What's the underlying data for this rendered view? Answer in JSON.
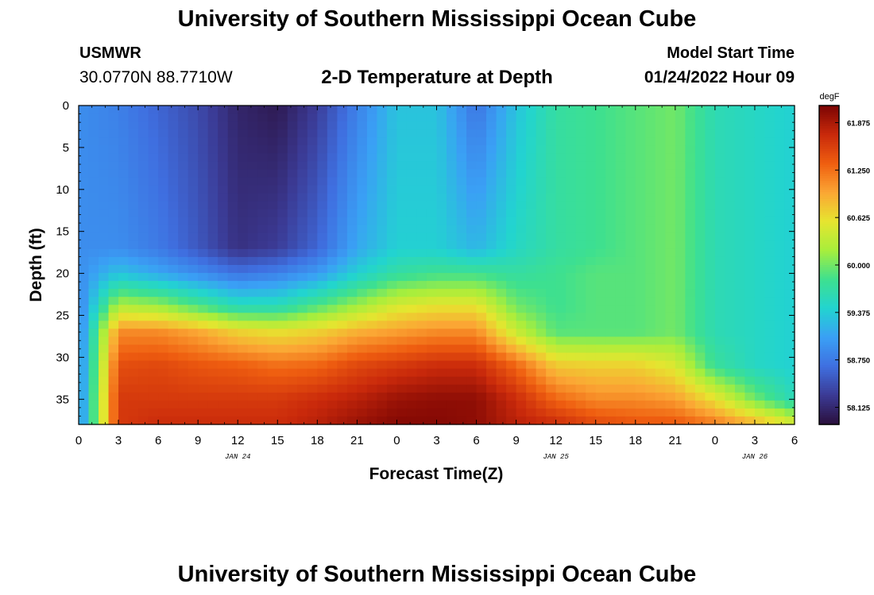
{
  "header": {
    "title": "University of Southern Mississippi Ocean Cube",
    "station": "USMWR",
    "coords": "30.0770N  88.7710W",
    "subtitle": "2-D Temperature at Depth",
    "start_label": "Model Start Time",
    "start_value": "01/24/2022 Hour 09"
  },
  "footer": {
    "title": "University of Southern Mississippi Ocean Cube"
  },
  "chart_data": {
    "type": "heatmap",
    "xlabel": "Forecast Time(Z)",
    "ylabel": "Depth (ft)",
    "x_tick_labels": [
      "0",
      "3",
      "6",
      "9",
      "12",
      "15",
      "18",
      "21",
      "0",
      "3",
      "6",
      "9",
      "12",
      "15",
      "18",
      "21",
      "0",
      "3",
      "6"
    ],
    "x_range_hours": [
      0,
      54
    ],
    "date_labels": [
      {
        "label": "JAN 24",
        "hour": 12
      },
      {
        "label": "JAN 25",
        "hour": 36
      },
      {
        "label": "JAN 26",
        "hour": 51
      }
    ],
    "y_ticks": [
      0,
      5,
      10,
      15,
      20,
      25,
      30,
      35
    ],
    "y_range": [
      0,
      38
    ],
    "y_inverted": true,
    "colorbar": {
      "unit": "degF",
      "min": 57.9,
      "max": 62.1,
      "tick_values": [
        58.125,
        58.75,
        59.375,
        60.0,
        60.625,
        61.25,
        61.875
      ],
      "tick_labels": [
        "58.125",
        "58.750",
        "59.375",
        "60.000",
        "60.625",
        "61.250",
        "61.875"
      ],
      "colors": [
        "#2a0f3c",
        "#3b3a94",
        "#3f6fe0",
        "#3aa0f5",
        "#22d4d0",
        "#3ee08f",
        "#a7ee3c",
        "#e6e52f",
        "#fba634",
        "#ef5e10",
        "#c9290b",
        "#7a0403"
      ]
    },
    "depth_samples": [
      0,
      17,
      20,
      24,
      27,
      31,
      35,
      38
    ],
    "time_samples_hours": [
      0,
      3,
      6,
      9,
      12,
      15,
      18,
      21,
      24,
      27,
      30,
      33,
      36,
      39,
      42,
      45,
      48,
      51,
      54
    ],
    "values_degF": [
      [
        58.9,
        58.9,
        58.9,
        58.8,
        58.8,
        58.8,
        58.8,
        58.8
      ],
      [
        58.8,
        58.9,
        59.3,
        60.3,
        61.1,
        61.45,
        61.6,
        61.6
      ],
      [
        58.6,
        58.75,
        59.1,
        60.2,
        61.1,
        61.5,
        61.6,
        61.7
      ],
      [
        58.4,
        58.5,
        58.9,
        59.9,
        60.95,
        61.4,
        61.6,
        61.7
      ],
      [
        58.1,
        58.2,
        58.7,
        59.6,
        60.7,
        61.35,
        61.6,
        61.7
      ],
      [
        58.0,
        58.3,
        58.8,
        59.6,
        60.6,
        61.25,
        61.6,
        61.7
      ],
      [
        58.3,
        58.6,
        59.0,
        59.9,
        60.7,
        61.3,
        61.7,
        61.8
      ],
      [
        58.8,
        59.1,
        59.4,
        60.2,
        60.9,
        61.5,
        61.8,
        61.95
      ],
      [
        59.3,
        59.4,
        59.7,
        60.5,
        61.0,
        61.6,
        61.95,
        62.05
      ],
      [
        59.3,
        59.4,
        59.8,
        60.6,
        61.1,
        61.7,
        62.0,
        62.05
      ],
      [
        58.7,
        59.2,
        59.8,
        60.6,
        61.1,
        61.7,
        62.0,
        62.0
      ],
      [
        59.3,
        59.5,
        59.7,
        60.0,
        60.4,
        61.3,
        61.7,
        61.8
      ],
      [
        59.7,
        59.7,
        59.8,
        59.8,
        59.9,
        60.75,
        61.3,
        61.7
      ],
      [
        59.8,
        59.8,
        59.9,
        59.9,
        59.9,
        60.7,
        61.1,
        61.5
      ],
      [
        59.9,
        59.9,
        59.9,
        59.9,
        59.9,
        60.7,
        61.1,
        61.4
      ],
      [
        60.0,
        60.0,
        60.0,
        60.0,
        60.0,
        60.5,
        61.0,
        61.4
      ],
      [
        59.6,
        59.6,
        59.6,
        59.6,
        59.6,
        59.75,
        60.6,
        61.2
      ],
      [
        59.5,
        59.5,
        59.5,
        59.5,
        59.5,
        59.5,
        60.0,
        60.9
      ],
      [
        59.4,
        59.4,
        59.4,
        59.4,
        59.4,
        59.4,
        59.55,
        60.5
      ]
    ]
  }
}
